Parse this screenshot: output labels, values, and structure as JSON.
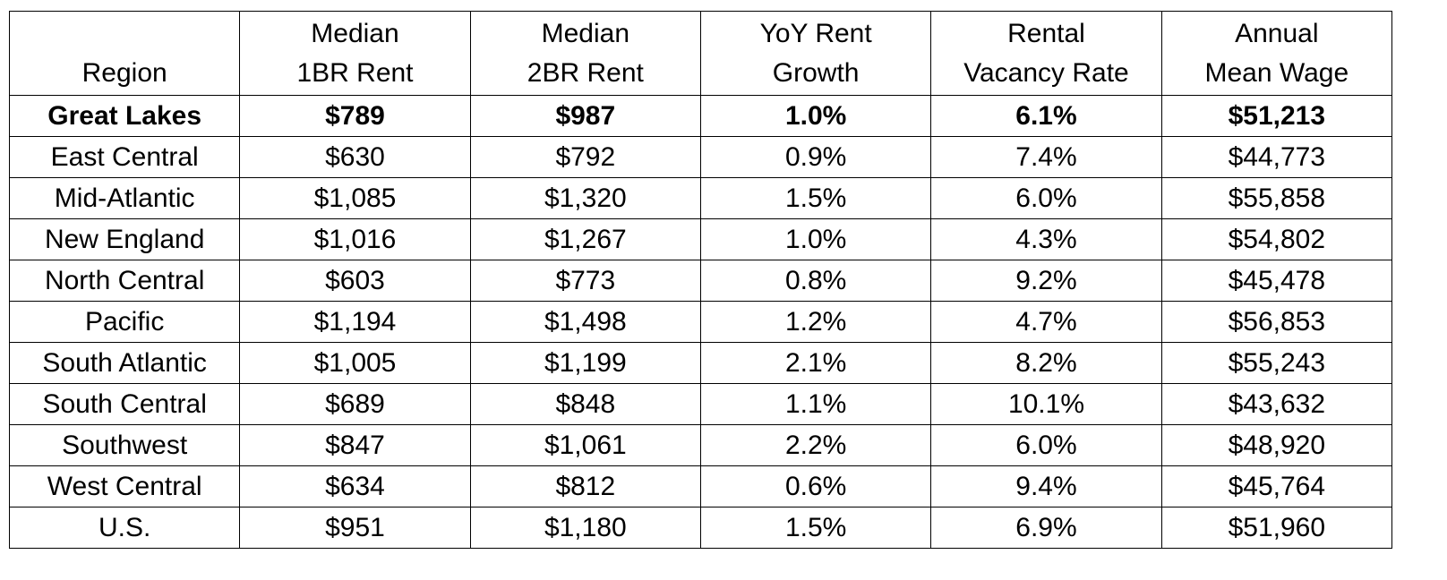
{
  "table": {
    "header": [
      [
        "Region"
      ],
      [
        "Median",
        "1BR Rent"
      ],
      [
        "Median",
        "2BR Rent"
      ],
      [
        "YoY Rent",
        "Growth"
      ],
      [
        "Rental",
        "Vacancy Rate"
      ],
      [
        "Annual",
        "Mean Wage"
      ]
    ],
    "rows": [
      [
        "Great Lakes",
        "$789",
        "$987",
        "1.0%",
        "6.1%",
        "$51,213"
      ],
      [
        "East Central",
        "$630",
        "$792",
        "0.9%",
        "7.4%",
        "$44,773"
      ],
      [
        "Mid-Atlantic",
        "$1,085",
        "$1,320",
        "1.5%",
        "6.0%",
        "$55,858"
      ],
      [
        "New England",
        "$1,016",
        "$1,267",
        "1.0%",
        "4.3%",
        "$54,802"
      ],
      [
        "North Central",
        "$603",
        "$773",
        "0.8%",
        "9.2%",
        "$45,478"
      ],
      [
        "Pacific",
        "$1,194",
        "$1,498",
        "1.2%",
        "4.7%",
        "$56,853"
      ],
      [
        "South Atlantic",
        "$1,005",
        "$1,199",
        "2.1%",
        "8.2%",
        "$55,243"
      ],
      [
        "South Central",
        "$689",
        "$848",
        "1.1%",
        "10.1%",
        "$43,632"
      ],
      [
        "Southwest",
        "$847",
        "$1,061",
        "2.2%",
        "6.0%",
        "$48,920"
      ],
      [
        "West Central",
        "$634",
        "$812",
        "0.6%",
        "9.4%",
        "$45,764"
      ],
      [
        "U.S.",
        "$951",
        "$1,180",
        "1.5%",
        "6.9%",
        "$51,960"
      ]
    ]
  }
}
